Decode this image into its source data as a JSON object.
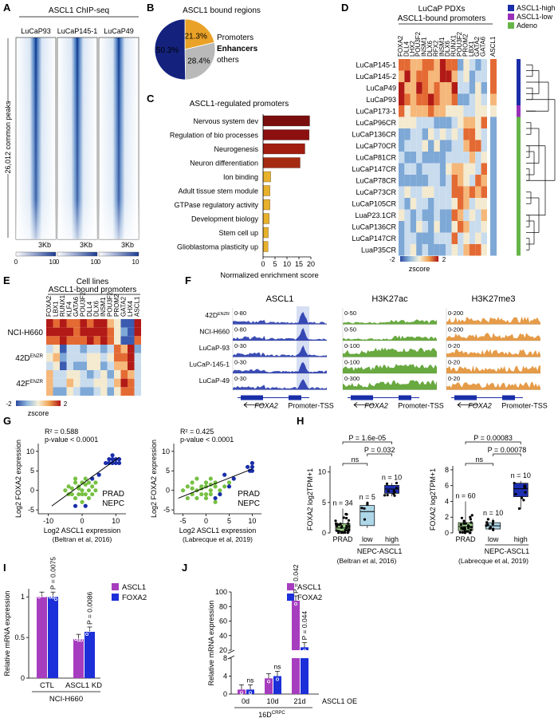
{
  "panel_letters": [
    "A",
    "B",
    "C",
    "D",
    "E",
    "F",
    "G",
    "H",
    "I",
    "J"
  ],
  "panelA": {
    "title": "ASCL1 ChIP-seq",
    "samples": [
      "LuCaP93",
      "LuCaP145-1",
      "LuCaP49"
    ],
    "ylabel": "26,012 common peaks",
    "xlabel": "3Kb",
    "scale_min": "0",
    "scale_max": "10"
  },
  "chart_data": [
    {
      "id": "B",
      "type": "pie",
      "title": "ASCL1 bound regions",
      "slices": [
        {
          "label": "Promoters",
          "value": 21.3,
          "text": "21.3%",
          "color": "#e9a227"
        },
        {
          "label": "Enhancers",
          "value": 28.4,
          "text": "28.4%",
          "color": "#2a36b1"
        },
        {
          "label": "others",
          "value": 50.3,
          "text": "50.3%",
          "color": "#bdbdbd"
        }
      ],
      "slice_label_colors": {
        "Promoters": "#e9a227",
        "Enhancers": "#2a36b1",
        "others": "#aaaaaa"
      }
    },
    {
      "id": "C",
      "type": "bar",
      "orientation": "horizontal",
      "title": "ASCL1-regulated promoters",
      "categories": [
        "Nervous system dev",
        "Regulation of bio processes",
        "Neurogenesis",
        "Neuron differentiation",
        "Ion binding",
        "Adult tissue stem module",
        "GTPase regulatory activity",
        "Development biology",
        "Stem cell up",
        "Glioblastoma plasticity up"
      ],
      "values": [
        19.5,
        19.3,
        17.5,
        15.5,
        3.2,
        2.9,
        2.9,
        2.6,
        2.2,
        2.1
      ],
      "colors": [
        "#7a0d0d",
        "#8c1010",
        "#a01d10",
        "#a52a12",
        "#e8b12b",
        "#e8b12b",
        "#e8b12b",
        "#e8b12b",
        "#e8b12b",
        "#e8b12b"
      ],
      "xlabel": "Normalized enrichment score",
      "xticks": [
        0,
        5,
        10,
        15,
        20
      ],
      "xlim": [
        0,
        21
      ]
    },
    {
      "id": "G1",
      "type": "scatter",
      "annotation_r2": "R² = 0.588",
      "annotation_p": "p-value < 0.0001",
      "xlabel": "Log2 ASCL1 expression",
      "ylabel": "Log2 FOXA2 expression",
      "source": "(Beltran et al, 2016)",
      "xticks": [
        -10,
        0,
        10
      ],
      "yticks": [
        -5,
        0,
        5,
        10
      ],
      "xlim": [
        -13,
        13
      ],
      "ylim": [
        -6,
        12
      ],
      "series": [
        {
          "name": "PRAD",
          "color": "#77c043",
          "points": [
            [
              -4,
              1
            ],
            [
              -3,
              0.5
            ],
            [
              -2,
              2
            ],
            [
              -1,
              1
            ],
            [
              0,
              0
            ],
            [
              1,
              1.5
            ],
            [
              2,
              2
            ],
            [
              -3,
              -1
            ],
            [
              -2,
              -2
            ],
            [
              -1,
              -1
            ],
            [
              0,
              -3
            ],
            [
              1,
              -1
            ],
            [
              2,
              0
            ],
            [
              3,
              1
            ],
            [
              4,
              2
            ],
            [
              -4,
              -1
            ],
            [
              -5,
              0
            ],
            [
              0,
              2
            ],
            [
              2,
              -2
            ],
            [
              3,
              -1
            ],
            [
              -2,
              3
            ],
            [
              1,
              3
            ],
            [
              0,
              -1
            ],
            [
              -1,
              0.5
            ],
            [
              4,
              0
            ]
          ]
        },
        {
          "name": "NEPC",
          "color": "#1a2ea8",
          "points": [
            [
              7,
              7
            ],
            [
              8,
              8
            ],
            [
              9,
              8
            ],
            [
              10,
              7
            ],
            [
              11,
              8
            ],
            [
              9,
              7
            ],
            [
              8,
              7
            ],
            [
              10,
              8
            ],
            [
              11,
              7
            ],
            [
              3,
              3
            ],
            [
              5,
              4
            ],
            [
              -2,
              -4
            ],
            [
              1,
              -4
            ],
            [
              9,
              9
            ]
          ]
        }
      ],
      "fit": [
        [
          -9,
          -4
        ],
        [
          11,
          8.5
        ]
      ]
    },
    {
      "id": "G2",
      "type": "scatter",
      "annotation_r2": "R² = 0.425",
      "annotation_p": "p-value < 0.0001",
      "xlabel": "Log2 ASCL1 expression",
      "ylabel": "Log2 FOXA2 expression",
      "source": "(Labrecque et al, 2019)",
      "xticks": [
        -5,
        0,
        5,
        10
      ],
      "yticks": [
        -5,
        0,
        5,
        10
      ],
      "xlim": [
        -7,
        12
      ],
      "ylim": [
        -6,
        12
      ],
      "series": [
        {
          "name": "PRAD",
          "color": "#77c043",
          "points": [
            [
              -4,
              1
            ],
            [
              -3,
              2
            ],
            [
              -2,
              0
            ],
            [
              -1,
              1
            ],
            [
              0,
              2
            ],
            [
              1,
              0
            ],
            [
              2,
              1
            ],
            [
              -3,
              -1
            ],
            [
              -2,
              -2
            ],
            [
              -1,
              -1
            ],
            [
              0,
              -2
            ],
            [
              1,
              -1
            ],
            [
              2,
              -3
            ],
            [
              3,
              0
            ],
            [
              -4,
              -2
            ],
            [
              -5,
              0
            ],
            [
              0,
              1
            ],
            [
              2,
              2
            ],
            [
              3,
              -1
            ],
            [
              -2,
              3
            ],
            [
              1,
              3
            ],
            [
              0,
              -1
            ],
            [
              -1,
              0.5
            ],
            [
              4,
              1
            ],
            [
              -3,
              0.5
            ],
            [
              1,
              1.5
            ],
            [
              5,
              2
            ]
          ]
        },
        {
          "name": "NEPC",
          "color": "#1a2ea8",
          "points": [
            [
              9,
              6
            ],
            [
              10,
              7
            ],
            [
              9.5,
              5
            ],
            [
              10,
              6
            ],
            [
              3,
              -1
            ],
            [
              5,
              1
            ],
            [
              4,
              4
            ],
            [
              2,
              -2
            ],
            [
              6,
              3
            ],
            [
              10,
              5
            ]
          ]
        }
      ],
      "fit": [
        [
          -6,
          -2
        ],
        [
          10,
          5.5
        ]
      ]
    },
    {
      "id": "H1",
      "type": "box",
      "ylabel": "FOXA2 log2TPM+1",
      "yticks": [
        0,
        5,
        10
      ],
      "ylim": [
        0,
        11
      ],
      "groups": [
        {
          "label": "PRAD",
          "n": "n = 34",
          "q1": 0.3,
          "median": 0.8,
          "q3": 1.5,
          "min": 0,
          "max": 4,
          "color": "#9fd18a"
        },
        {
          "label": "low",
          "n": "n = 5",
          "q1": 1.2,
          "median": 3.5,
          "q3": 4.5,
          "min": 0.8,
          "max": 5,
          "color": "#aed7e8"
        },
        {
          "label": "high",
          "n": "n = 10",
          "q1": 6.5,
          "median": 7.2,
          "q3": 7.8,
          "min": 6,
          "max": 8.2,
          "color": "#1d2fb0"
        }
      ],
      "group_caption": "NEPC-ASCL1",
      "comparisons": [
        {
          "from": 0,
          "to": 2,
          "text": "P = 1.6e-05"
        },
        {
          "from": 1,
          "to": 2,
          "text": "P = 0.032"
        },
        {
          "from": 0,
          "to": 1,
          "text": "ns"
        }
      ],
      "source": "(Beltran et al, 2016)"
    },
    {
      "id": "H2",
      "type": "box",
      "ylabel": "FOXA2 log2TPM+1",
      "yticks": [
        0,
        2,
        4,
        6,
        8
      ],
      "ylim": [
        0,
        8.5
      ],
      "groups": [
        {
          "label": "PRAD",
          "n": "n = 60",
          "q1": 0.3,
          "median": 0.8,
          "q3": 1.3,
          "min": 0,
          "max": 4,
          "color": "#9fd18a"
        },
        {
          "label": "low",
          "n": "n = 10",
          "q1": 0.5,
          "median": 0.9,
          "q3": 1.3,
          "min": 0.2,
          "max": 1.8,
          "color": "#aed7e8"
        },
        {
          "label": "high",
          "n": "n = 10",
          "q1": 4.6,
          "median": 5.6,
          "q3": 6.3,
          "min": 3,
          "max": 6.6,
          "color": "#1d2fb0"
        }
      ],
      "group_caption": "NEPC-ASCL1",
      "comparisons": [
        {
          "from": 0,
          "to": 2,
          "text": "P = 0.00083"
        },
        {
          "from": 1,
          "to": 2,
          "text": "P = 0.00078"
        },
        {
          "from": 0,
          "to": 1,
          "text": "ns"
        }
      ],
      "source": "(Labrecque et al, 2019)"
    },
    {
      "id": "I",
      "type": "bar",
      "ylabel": "Relative mRNA expression",
      "categories": [
        "CTL",
        "ASCL1 KD"
      ],
      "cell_line": "NCI-H660",
      "series": [
        {
          "name": "ASCL1",
          "color": "#a63dbf",
          "values": [
            1.0,
            0.48
          ]
        },
        {
          "name": "FOXA2",
          "color": "#1c2fd8",
          "values": [
            1.0,
            0.57
          ]
        }
      ],
      "pvalues": [
        "",
        "P = 0.0075",
        "",
        "P = 0.0086"
      ],
      "yticks": [
        0,
        0.5,
        1
      ],
      "ylim": [
        0,
        1.1
      ]
    },
    {
      "id": "J",
      "type": "bar",
      "ylabel": "Relative mRNA expression",
      "categories": [
        "0d",
        "10d",
        "21d"
      ],
      "group_caption": "ASCL1 OE",
      "cell_line": "16D",
      "cell_line_sup": "CRPC",
      "series": [
        {
          "name": "ASCL1",
          "color": "#a63dbf",
          "values": [
            1,
            3.5,
            88
          ]
        },
        {
          "name": "FOXA2",
          "color": "#1c2fd8",
          "values": [
            1,
            4,
            24
          ]
        }
      ],
      "annotations": [
        "",
        "ns",
        "",
        "ns",
        "P = 0.042",
        "P = 0.044"
      ],
      "yticks_low": [
        0,
        4,
        8
      ],
      "yticks_high": [
        20,
        40,
        60,
        80,
        100
      ]
    }
  ],
  "panelD": {
    "title": "LuCaP PDXs",
    "subtitle": "ASCL1-bound promoters",
    "genes": [
      "FOXA2",
      "DLL4",
      "LHX2",
      "POU3F2",
      "INSM1",
      "DLX6",
      "RFX2",
      "INSM1",
      "DLX6",
      "RUNX1",
      "POU3F2",
      "PROM2",
      "LBX1",
      "GATA2",
      "GATA6",
      "ASCL1"
    ],
    "samples": [
      "LuCaP145-1",
      "LuCaP145-2",
      "LuCaP49",
      "LuCaP93",
      "LuCaP173-1",
      "LuCaP96CR",
      "LuCaP136CR",
      "LuCaP70CR",
      "LuCaP81CR",
      "LuCaP147CR",
      "LuCaP78CR",
      "LuCaP73CR",
      "LuCaP105CR",
      "LuaP23.1CR",
      "LuCaP136CR",
      "LuCaP147CR",
      "LuaP35CR"
    ],
    "groups": [
      "ASCL1-high",
      "ASCL1-low",
      "Adeno"
    ],
    "group_colors": [
      "#1a2ea8",
      "#9a30b8",
      "#66b548"
    ],
    "colorbar_min": "-2",
    "colorbar_max": "2",
    "colorbar_label": "zscore"
  },
  "panelE": {
    "title": "Cell lines",
    "subtitle": "ASCL1-bound promoters",
    "genes": [
      "FOXA2",
      "LBX1",
      "RUNX1",
      "KLF4",
      "GATA6",
      "POU3F2",
      "DLL4",
      "DLX6",
      "INSM1",
      "POU3F2",
      "PROM2",
      "GATA2",
      "LHX4",
      "ASCL1"
    ],
    "samples": [
      "NCI-H660",
      "42D",
      "42F"
    ],
    "sample_sup": [
      "",
      "ENZR",
      "ENZR"
    ],
    "colorbar_min": "-2",
    "colorbar_max": "2",
    "colorbar_label": "zscore"
  },
  "panelF": {
    "tracks": [
      {
        "title": "ASCL1",
        "color": "#1a2ea8",
        "ranges": [
          "0-80",
          "0-80",
          "0-30",
          "0-30",
          "0-30"
        ]
      },
      {
        "title": "H3K27ac",
        "color": "#4e9a1f",
        "ranges": [
          "0-50",
          "0-50",
          "0-100",
          "0-100",
          "0-300"
        ]
      },
      {
        "title": "H3K27me3",
        "color": "#e08a28",
        "ranges": [
          "0-200",
          "0-200",
          "0-20",
          "0-20",
          "0-20"
        ]
      }
    ],
    "samples": [
      "42D",
      "NCI-H660",
      "LuCaP-93",
      "LuCaP-145-1",
      "LuCaP-49"
    ],
    "sample_sup": [
      "ENZR",
      "",
      "",
      "",
      ""
    ],
    "gene": "FOXA2",
    "region": "Promoter-TSS"
  }
}
